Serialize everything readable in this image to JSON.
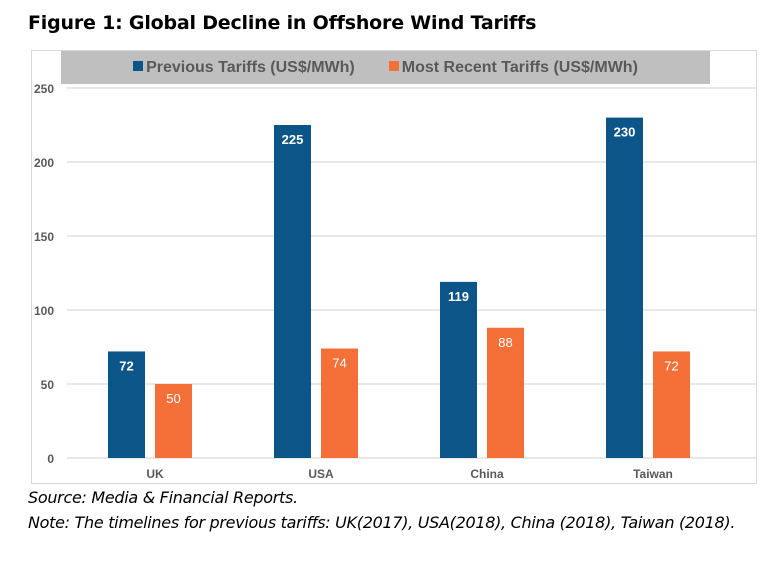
{
  "chart_data": {
    "type": "bar",
    "title": "Figure 1: Global Decline in Offshore Wind Tariffs",
    "categories": [
      "UK",
      "USA",
      "China",
      "Taiwan"
    ],
    "series": [
      {
        "name": "Previous Tariffs (US$/MWh)",
        "values": [
          72,
          225,
          119,
          230
        ],
        "color": "#0b5589"
      },
      {
        "name": "Most Recent Tariffs (US$/MWh)",
        "values": [
          50,
          74,
          88,
          72
        ],
        "color": "#f47038"
      }
    ],
    "ylim": [
      0,
      250
    ],
    "yticks": [
      0,
      50,
      100,
      150,
      200,
      250
    ],
    "grid": true,
    "legend": "top",
    "xlabel": "",
    "ylabel": ""
  },
  "source": "Source: Media & Financial Reports.",
  "note": "Note: The timelines for previous tariffs: UK(2017), USA(2018), China (2018), Taiwan (2018)."
}
